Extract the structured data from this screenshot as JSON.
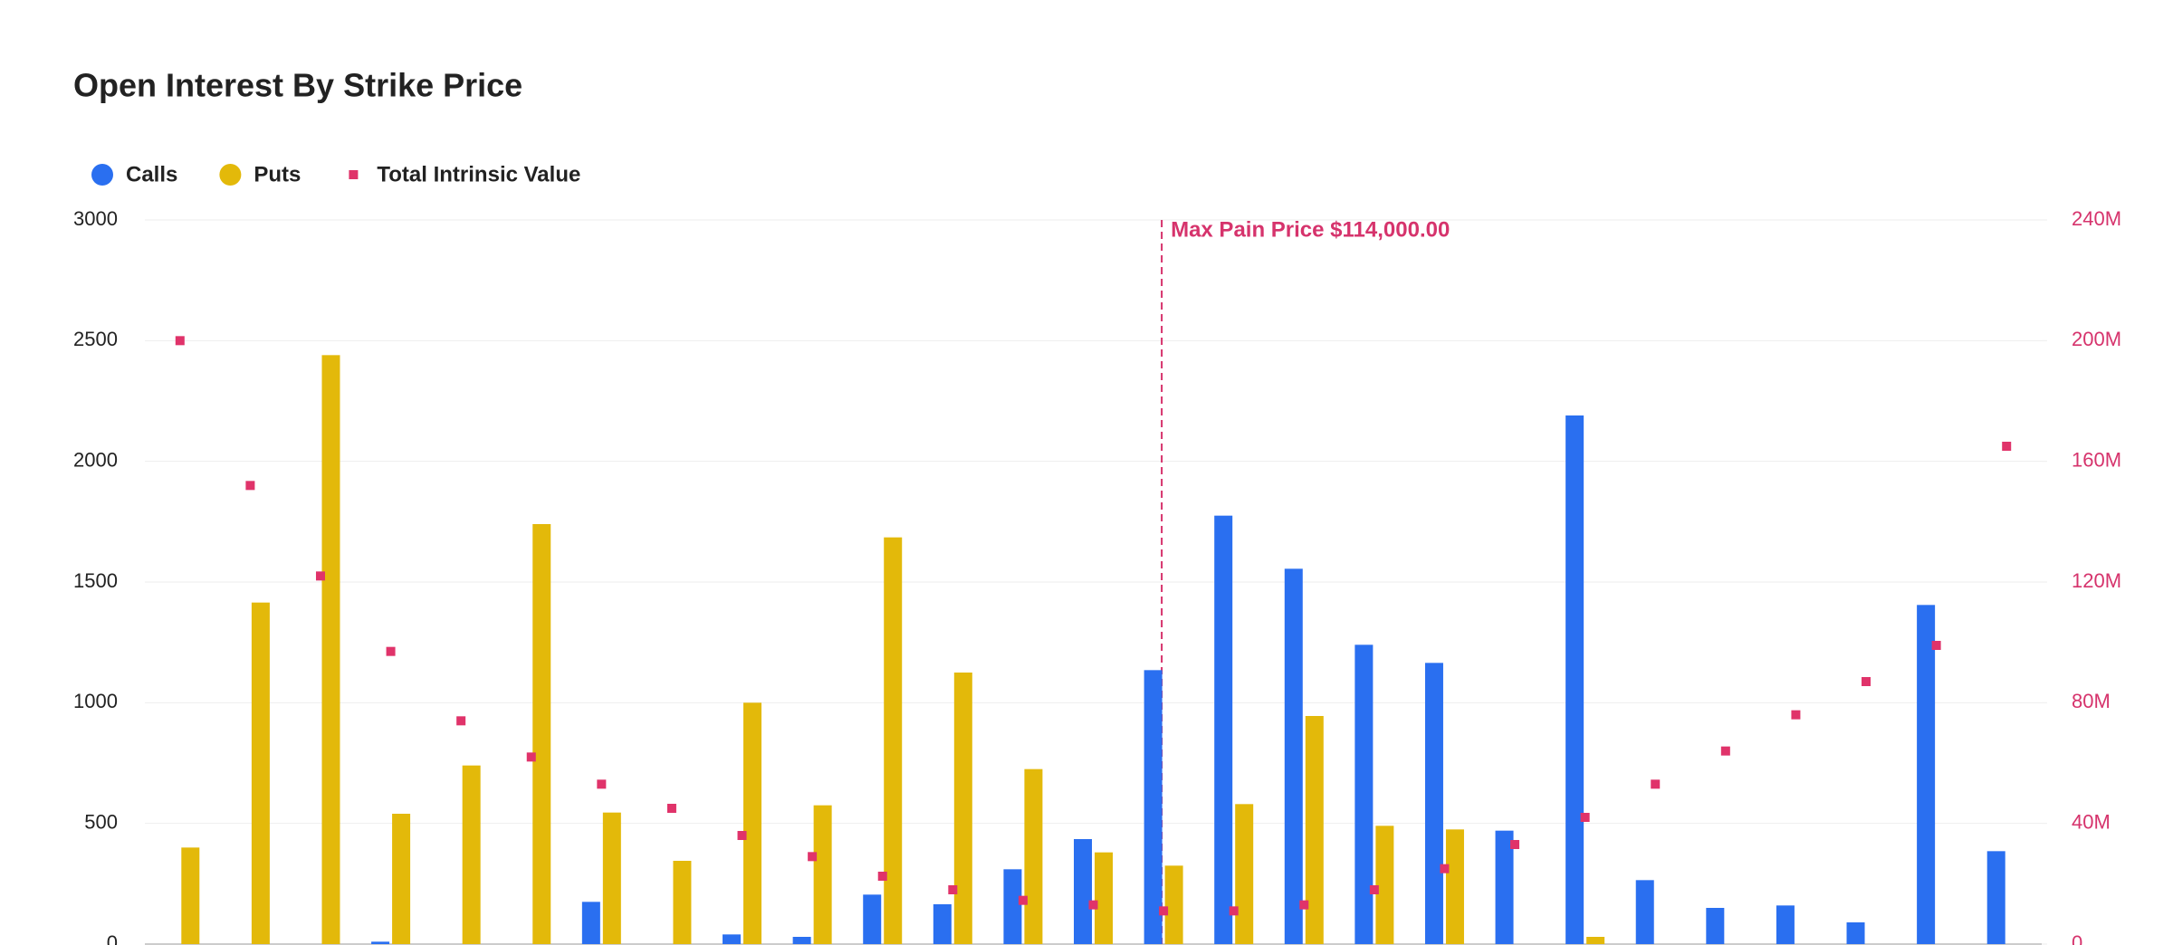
{
  "chart_data": {
    "type": "bar",
    "title": "Open Interest By Strike Price",
    "categories": [
      null,
      null,
      null,
      null,
      null,
      null,
      null,
      null,
      null,
      null,
      null,
      null,
      null,
      null,
      null,
      null,
      null,
      null,
      null,
      null,
      null,
      null,
      null,
      null,
      null,
      null,
      null
    ],
    "series": [
      {
        "name": "Calls",
        "color": "#2a6ff0",
        "values": [
          0,
          0,
          0,
          10,
          0,
          0,
          175,
          0,
          40,
          30,
          205,
          165,
          310,
          435,
          1135,
          1775,
          1555,
          1240,
          1165,
          470,
          2190,
          265,
          150,
          160,
          90,
          1405,
          385
        ]
      },
      {
        "name": "Puts",
        "color": "#e3b90a",
        "values": [
          400,
          1415,
          2440,
          540,
          740,
          1740,
          545,
          345,
          1000,
          575,
          1685,
          1125,
          725,
          380,
          325,
          580,
          945,
          490,
          475,
          0,
          30,
          0,
          0,
          0,
          0,
          0,
          0
        ]
      },
      {
        "name": "Total Intrinsic Value",
        "color": "#e0336a",
        "type": "scatter",
        "axis": "y2",
        "values": [
          200000000,
          152000000,
          122000000,
          97000000,
          74000000,
          62000000,
          53000000,
          45000000,
          36000000,
          29000000,
          22500000,
          18000000,
          14500000,
          13000000,
          11000000,
          11000000,
          13000000,
          18000000,
          25000000,
          33000000,
          42000000,
          53000000,
          64000000,
          76000000,
          87000000,
          99000000,
          165000000
        ]
      }
    ],
    "ylim": [
      0,
      3000
    ],
    "yticks": [
      0,
      500,
      1000,
      1500,
      2000,
      2500,
      3000
    ],
    "y2lim": [
      0,
      240000000
    ],
    "y2ticks": [
      {
        "value": 0,
        "label": "0"
      },
      {
        "value": 40000000,
        "label": "40M"
      },
      {
        "value": 80000000,
        "label": "80M"
      },
      {
        "value": 120000000,
        "label": "120M"
      },
      {
        "value": 160000000,
        "label": "160M"
      },
      {
        "value": 200000000,
        "label": "200M"
      },
      {
        "value": 240000000,
        "label": "240M"
      }
    ],
    "y2color": "#d6336c",
    "grid": true,
    "annotation": {
      "text": "Max Pain Price $114,000.00",
      "category_index": 14,
      "color": "#d6336c"
    }
  }
}
